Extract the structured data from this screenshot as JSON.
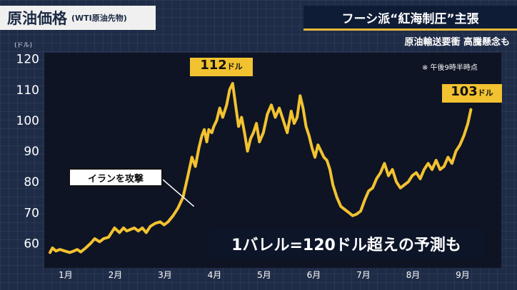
{
  "header": {
    "title": "原油価格",
    "subtitle": "(WTI原油先物)",
    "headline": "フーシ派“紅海制圧”主張",
    "subheadline": "原油輸送要衝 高騰懸念も"
  },
  "note": "※ 午後9時半時点",
  "labels": {
    "peak_value": "112",
    "peak_unit": "ドル",
    "latest_value": "103",
    "latest_unit": "ドル",
    "event": "イランを攻撃",
    "prediction": "1バレル=120ドル超えの予測も"
  },
  "colors": {
    "line": "#f2c230",
    "background": "#1f2c48",
    "plot_area": "#0f1424"
  },
  "chart_data": {
    "type": "line",
    "title": "原油価格",
    "subtitle": "(WTI原油先物)",
    "xlabel": "",
    "ylabel": "(ドル)",
    "ylim": [
      52,
      122
    ],
    "yticks": [
      60,
      70,
      80,
      90,
      100,
      110,
      120
    ],
    "ytick_labels": [
      "60",
      "70",
      "80",
      "90",
      "100",
      "110",
      "120"
    ],
    "xtick_labels": [
      "1月",
      "2月",
      "3月",
      "4月",
      "5月",
      "6月",
      "7月",
      "8月",
      "9月"
    ],
    "grid": false,
    "series": [
      {
        "name": "",
        "x": [
          0.0,
          0.05,
          0.12,
          0.2,
          0.3,
          0.4,
          0.48,
          0.55,
          0.62,
          0.72,
          0.82,
          0.9,
          1.0,
          1.08,
          1.18,
          1.3,
          1.4,
          1.48,
          1.55,
          1.62,
          1.7,
          1.78,
          1.86,
          1.94,
          2.02,
          2.12,
          2.22,
          2.3,
          2.38,
          2.48,
          2.58,
          2.68,
          2.78,
          2.86,
          2.93,
          3.0,
          3.06,
          3.11,
          3.16,
          3.2,
          3.26,
          3.3,
          3.36,
          3.42,
          3.48,
          3.56,
          3.62,
          3.68,
          3.74,
          3.8,
          3.86,
          3.92,
          3.98,
          4.04,
          4.1,
          4.16,
          4.22,
          4.3,
          4.38,
          4.46,
          4.54,
          4.62,
          4.7,
          4.78,
          4.86,
          4.92,
          4.98,
          5.04,
          5.1,
          5.16,
          5.22,
          5.28,
          5.34,
          5.4,
          5.46,
          5.52,
          5.58,
          5.64,
          5.7,
          5.78,
          5.86,
          5.94,
          6.02,
          6.1,
          6.18,
          6.26,
          6.34,
          6.42,
          6.5,
          6.58,
          6.66,
          6.74,
          6.82,
          6.9,
          6.98,
          7.06,
          7.14,
          7.22,
          7.3,
          7.38,
          7.46,
          7.54,
          7.62,
          7.7,
          7.78,
          7.86,
          7.94,
          8.02,
          8.1,
          8.18,
          8.26,
          8.34,
          8.42,
          8.48
        ],
        "values": [
          57,
          58.5,
          57.5,
          58,
          57.5,
          57,
          57.5,
          58,
          57.2,
          58.5,
          60,
          61.5,
          60.5,
          61.5,
          62,
          65,
          63.5,
          65,
          64,
          64.5,
          65,
          64,
          65,
          63.5,
          65.5,
          66.5,
          67,
          66,
          67,
          69,
          71.5,
          75,
          82,
          88,
          85,
          91,
          95,
          97,
          93,
          97,
          96,
          98,
          100,
          104,
          101,
          105,
          110,
          112,
          105,
          98,
          101,
          96,
          90,
          94,
          96,
          99,
          93,
          96,
          102,
          105,
          101,
          104,
          100,
          96,
          103,
          99,
          101,
          108,
          104,
          98,
          95,
          91,
          88,
          92,
          90,
          88,
          87,
          84,
          79,
          75,
          72,
          71,
          70,
          69,
          69.5,
          70.5,
          74,
          77,
          78,
          81,
          83,
          86,
          82,
          84,
          80,
          78,
          79,
          80,
          82,
          83,
          81,
          84,
          86,
          84,
          87,
          84,
          85,
          88,
          86,
          90,
          92,
          95,
          99,
          103.5
        ]
      }
    ],
    "annotations": [
      {
        "x": 3.68,
        "y": 112,
        "text": "112ドル"
      },
      {
        "x": 8.48,
        "y": 103.5,
        "text": "103ドル"
      },
      {
        "x": 2.9,
        "y": 72,
        "text": "イランを攻撃"
      }
    ]
  }
}
